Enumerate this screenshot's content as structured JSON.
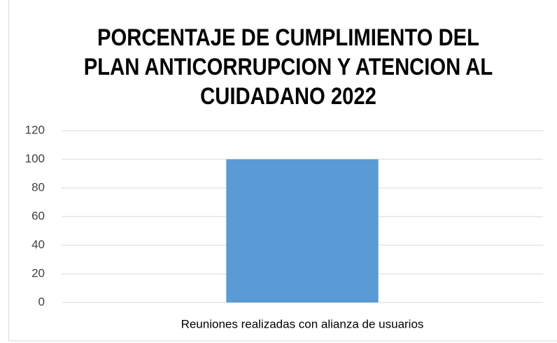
{
  "chart_data": {
    "type": "bar",
    "title": [
      "PORCENTAJE DE CUMPLIMIENTO DEL",
      "PLAN ANTICORRUPCION Y ATENCION AL",
      "CUIDADANO 2022"
    ],
    "categories": [
      "Reuniones realizadas con alianza de usuarios"
    ],
    "values": [
      100
    ],
    "color": "#5b9bd5",
    "ylim": [
      0,
      120
    ],
    "yticks": [
      0,
      20,
      40,
      60,
      80,
      100,
      120
    ],
    "grid": true
  }
}
